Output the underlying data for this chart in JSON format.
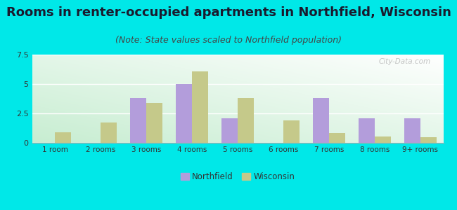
{
  "title": "Rooms in renter-occupied apartments in Northfield, Wisconsin",
  "subtitle": "(Note: State values scaled to Northfield population)",
  "categories": [
    "1 room",
    "2 rooms",
    "3 rooms",
    "4 rooms",
    "5 rooms",
    "6 rooms",
    "7 rooms",
    "8 rooms",
    "9+ rooms"
  ],
  "northfield": [
    0,
    0,
    3.8,
    5.0,
    2.1,
    0,
    3.8,
    2.1,
    2.1
  ],
  "wisconsin": [
    0.9,
    1.7,
    3.4,
    6.1,
    3.8,
    1.9,
    0.85,
    0.55,
    0.45
  ],
  "northfield_color": "#b39ddb",
  "wisconsin_color": "#c5c98a",
  "background_color": "#00e8e8",
  "ylim": [
    0,
    7.5
  ],
  "yticks": [
    0,
    2.5,
    5,
    7.5
  ],
  "bar_width": 0.35,
  "title_fontsize": 13,
  "subtitle_fontsize": 9,
  "watermark": "City-Data.com"
}
